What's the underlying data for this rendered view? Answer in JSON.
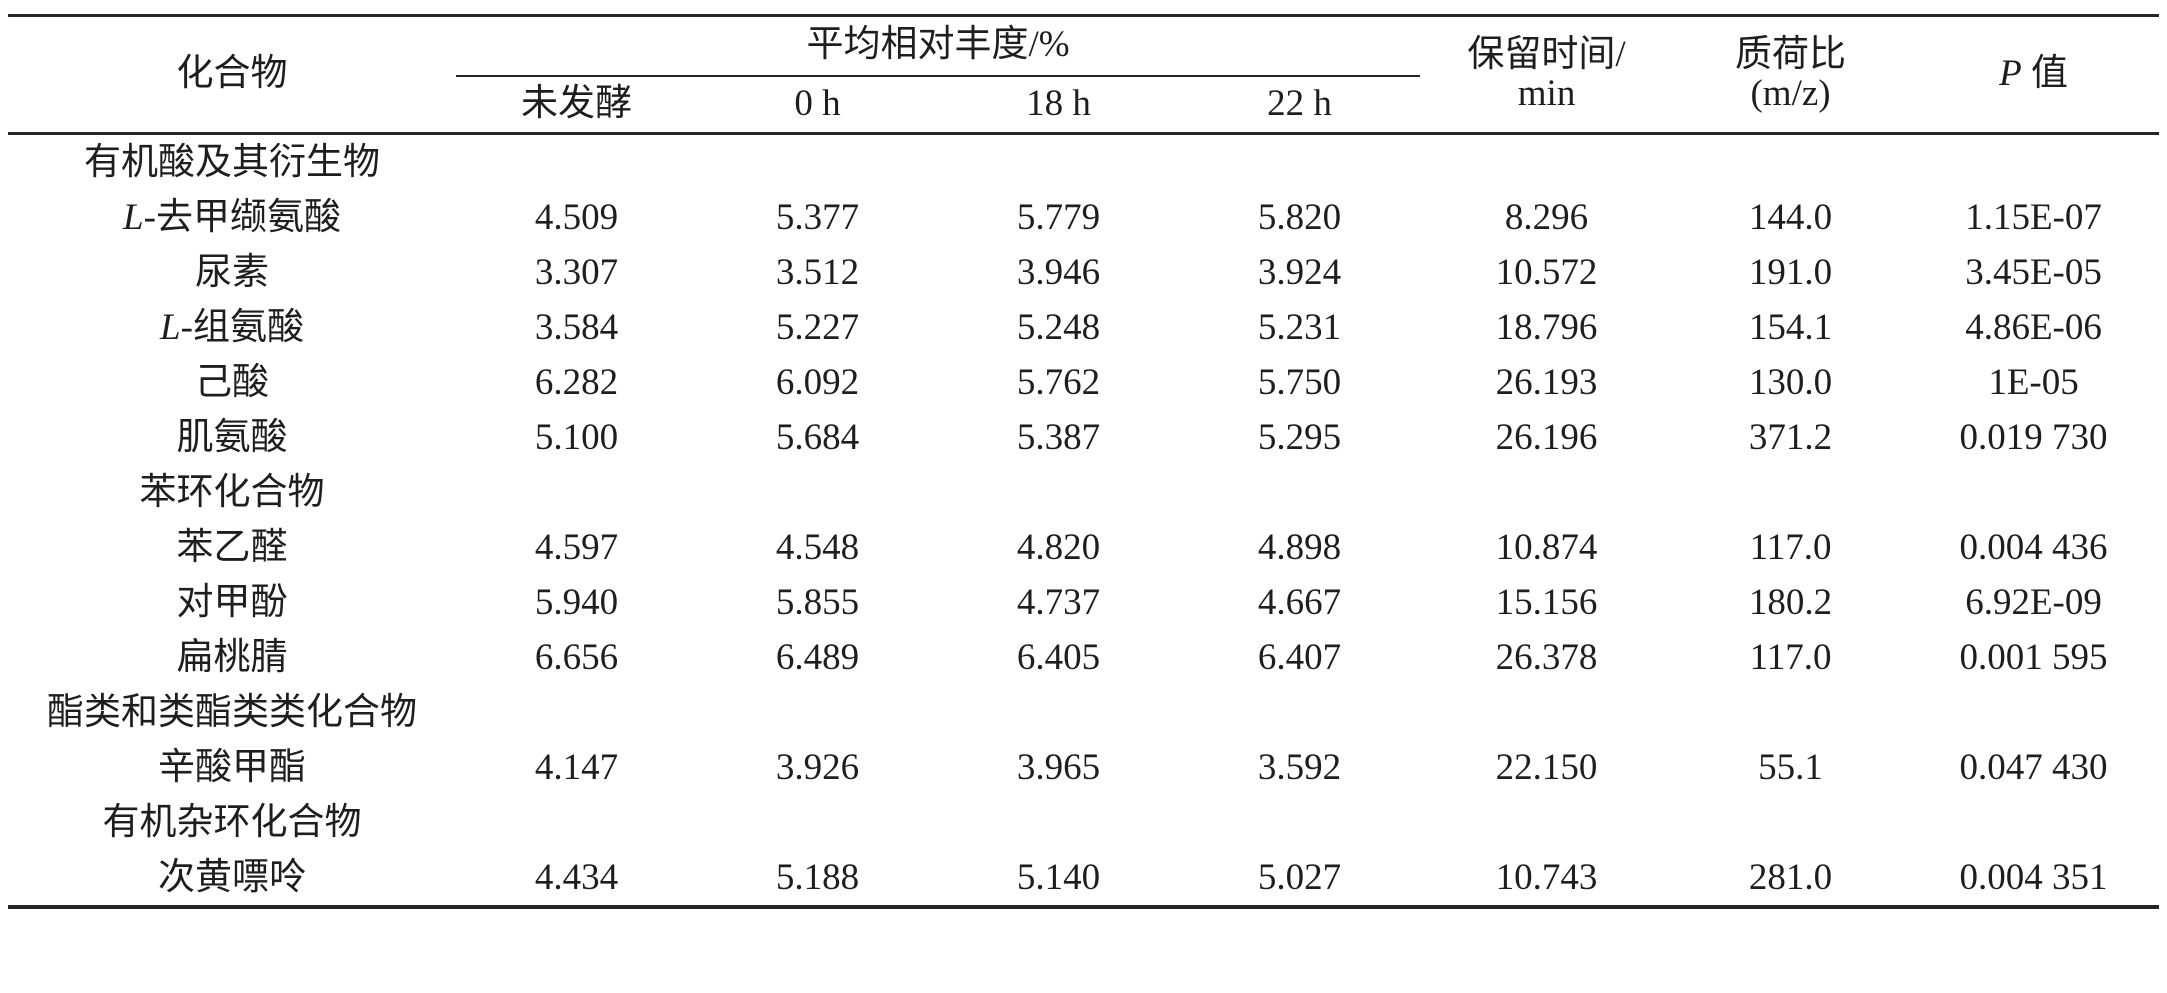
{
  "table": {
    "header": {
      "compound": "化合物",
      "abundance_group": "平均相对丰度/%",
      "abundance_cols": [
        "未发酵",
        "0 h",
        "18 h",
        "22 h"
      ],
      "retention_line1": "保留时间/",
      "retention_line2": "min",
      "mz_line1": "质荷比",
      "mz_line2": "(m/z)",
      "p_italic": "P",
      "p_rest": " 值"
    },
    "rows": [
      {
        "type": "category",
        "label": "有机酸及其衍生物"
      },
      {
        "type": "compound",
        "prefix": "L-",
        "name": "去甲缬氨酸",
        "values": [
          "4.509",
          "5.377",
          "5.779",
          "5.820"
        ],
        "retention": "8.296",
        "mz": "144.0",
        "p": "1.15E-07"
      },
      {
        "type": "compound",
        "prefix": "",
        "name": "尿素",
        "values": [
          "3.307",
          "3.512",
          "3.946",
          "3.924"
        ],
        "retention": "10.572",
        "mz": "191.0",
        "p": "3.45E-05"
      },
      {
        "type": "compound",
        "prefix": "L-",
        "name": "组氨酸",
        "values": [
          "3.584",
          "5.227",
          "5.248",
          "5.231"
        ],
        "retention": "18.796",
        "mz": "154.1",
        "p": "4.86E-06"
      },
      {
        "type": "compound",
        "prefix": "",
        "name": "己酸",
        "values": [
          "6.282",
          "6.092",
          "5.762",
          "5.750"
        ],
        "retention": "26.193",
        "mz": "130.0",
        "p": "1E-05"
      },
      {
        "type": "compound",
        "prefix": "",
        "name": "肌氨酸",
        "values": [
          "5.100",
          "5.684",
          "5.387",
          "5.295"
        ],
        "retention": "26.196",
        "mz": "371.2",
        "p": "0.019 730"
      },
      {
        "type": "category",
        "label": "苯环化合物"
      },
      {
        "type": "compound",
        "prefix": "",
        "name": "苯乙醛",
        "values": [
          "4.597",
          "4.548",
          "4.820",
          "4.898"
        ],
        "retention": "10.874",
        "mz": "117.0",
        "p": "0.004 436"
      },
      {
        "type": "compound",
        "prefix": "",
        "name": "对甲酚",
        "values": [
          "5.940",
          "5.855",
          "4.737",
          "4.667"
        ],
        "retention": "15.156",
        "mz": "180.2",
        "p": "6.92E-09"
      },
      {
        "type": "compound",
        "prefix": "",
        "name": "扁桃腈",
        "values": [
          "6.656",
          "6.489",
          "6.405",
          "6.407"
        ],
        "retention": "26.378",
        "mz": "117.0",
        "p": "0.001 595"
      },
      {
        "type": "category",
        "label": "酯类和类酯类类化合物"
      },
      {
        "type": "compound",
        "prefix": "",
        "name": "辛酸甲酯",
        "values": [
          "4.147",
          "3.926",
          "3.965",
          "3.592"
        ],
        "retention": "22.150",
        "mz": "55.1",
        "p": "0.047 430"
      },
      {
        "type": "category",
        "label": "有机杂环化合物"
      },
      {
        "type": "compound",
        "prefix": "",
        "name": "次黄嘌呤",
        "values": [
          "4.434",
          "5.188",
          "5.140",
          "5.027"
        ],
        "retention": "10.743",
        "mz": "281.0",
        "p": "0.004 351"
      }
    ]
  }
}
